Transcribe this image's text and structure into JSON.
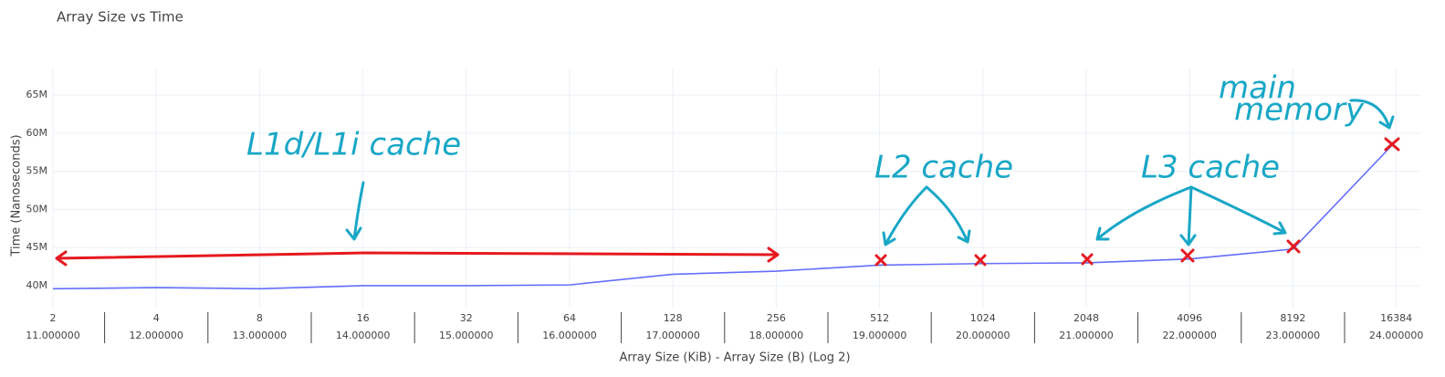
{
  "chart_data": {
    "type": "line",
    "title": "Array Size vs Time",
    "x_label": "Array Size (KiB) - Array Size (B) (Log 2)",
    "y_label": "Time (Nanoseconds)",
    "categories": [
      "2",
      "4",
      "8",
      "16",
      "32",
      "64",
      "128",
      "256",
      "512",
      "1024",
      "2048",
      "4096",
      "8192",
      "16384"
    ],
    "categories2": [
      "11.000000",
      "12.000000",
      "13.000000",
      "14.000000",
      "15.000000",
      "16.000000",
      "17.000000",
      "18.000000",
      "19.000000",
      "20.000000",
      "21.000000",
      "22.000000",
      "23.000000",
      "24.000000"
    ],
    "series": [
      {
        "name": "Time",
        "color": "#636efa",
        "values": [
          39600000,
          39750000,
          39600000,
          40000000,
          40000000,
          40100000,
          41500000,
          41900000,
          42700000,
          42900000,
          43000000,
          43500000,
          44800000,
          59000000
        ]
      }
    ],
    "ylim": [
      37000000,
      68500000
    ],
    "yticks": [
      {
        "value": 40000000,
        "label": "40M"
      },
      {
        "value": 45000000,
        "label": "45M"
      },
      {
        "value": 50000000,
        "label": "50M"
      },
      {
        "value": 55000000,
        "label": "55M"
      },
      {
        "value": 60000000,
        "label": "60M"
      },
      {
        "value": 65000000,
        "label": "65M"
      }
    ],
    "grid": true,
    "annotations": [
      "L1d/L1i cache",
      "L2 cache",
      "L3 cache",
      "main",
      "memory"
    ]
  }
}
